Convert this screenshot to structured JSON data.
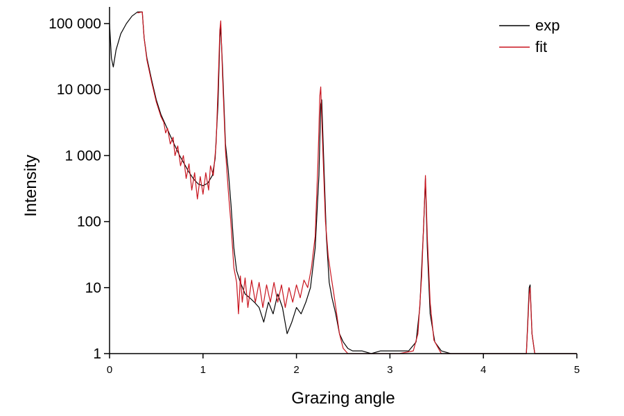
{
  "chart_data": {
    "type": "line",
    "title": "",
    "xlabel": "Grazing angle",
    "ylabel": "Intensity",
    "x_scale": "linear",
    "y_scale": "log",
    "xlim": [
      0,
      5
    ],
    "ylim": [
      1,
      180000
    ],
    "x_ticks": [
      0,
      1,
      2,
      3,
      4,
      5
    ],
    "x_tick_labels": [
      "0",
      "1",
      "2",
      "3",
      "4",
      "5"
    ],
    "y_ticks": [
      1,
      10,
      100,
      1000,
      10000,
      100000
    ],
    "y_tick_labels": [
      "1",
      "10",
      "100",
      "1 000",
      "10 000",
      "100 000"
    ],
    "grid": false,
    "legend_position": "top-right",
    "series": [
      {
        "name": "exp",
        "color": "#000000",
        "points": [
          [
            0.0,
            100000
          ],
          [
            0.02,
            30000
          ],
          [
            0.04,
            22000
          ],
          [
            0.07,
            40000
          ],
          [
            0.12,
            70000
          ],
          [
            0.18,
            100000
          ],
          [
            0.24,
            130000
          ],
          [
            0.3,
            150000
          ],
          [
            0.35,
            150000
          ],
          [
            0.37,
            60000
          ],
          [
            0.4,
            30000
          ],
          [
            0.45,
            14000
          ],
          [
            0.5,
            7000
          ],
          [
            0.55,
            4200
          ],
          [
            0.6,
            2900
          ],
          [
            0.65,
            2000
          ],
          [
            0.7,
            1400
          ],
          [
            0.75,
            1000
          ],
          [
            0.8,
            750
          ],
          [
            0.85,
            560
          ],
          [
            0.9,
            440
          ],
          [
            0.95,
            370
          ],
          [
            1.0,
            350
          ],
          [
            1.05,
            380
          ],
          [
            1.1,
            500
          ],
          [
            1.13,
            900
          ],
          [
            1.16,
            6000
          ],
          [
            1.18,
            60000
          ],
          [
            1.19,
            90000
          ],
          [
            1.21,
            20000
          ],
          [
            1.24,
            1500
          ],
          [
            1.27,
            600
          ],
          [
            1.3,
            180
          ],
          [
            1.33,
            40
          ],
          [
            1.36,
            18
          ],
          [
            1.4,
            12
          ],
          [
            1.45,
            8
          ],
          [
            1.5,
            7
          ],
          [
            1.55,
            6
          ],
          [
            1.6,
            5
          ],
          [
            1.65,
            3
          ],
          [
            1.7,
            6
          ],
          [
            1.75,
            4
          ],
          [
            1.8,
            8
          ],
          [
            1.85,
            5
          ],
          [
            1.9,
            2
          ],
          [
            1.95,
            3
          ],
          [
            2.0,
            5
          ],
          [
            2.05,
            4
          ],
          [
            2.1,
            6
          ],
          [
            2.15,
            10
          ],
          [
            2.2,
            40
          ],
          [
            2.24,
            500
          ],
          [
            2.26,
            6000
          ],
          [
            2.27,
            7000
          ],
          [
            2.29,
            1000
          ],
          [
            2.32,
            60
          ],
          [
            2.35,
            12
          ],
          [
            2.38,
            7
          ],
          [
            2.42,
            4
          ],
          [
            2.46,
            2
          ],
          [
            2.5,
            1.5
          ],
          [
            2.55,
            1.2
          ],
          [
            2.6,
            1.1
          ],
          [
            2.7,
            1.1
          ],
          [
            2.8,
            1
          ],
          [
            2.9,
            1.1
          ],
          [
            3.0,
            1.1
          ],
          [
            3.1,
            1.1
          ],
          [
            3.2,
            1.1
          ],
          [
            3.28,
            1.5
          ],
          [
            3.32,
            5
          ],
          [
            3.36,
            80
          ],
          [
            3.38,
            450
          ],
          [
            3.4,
            40
          ],
          [
            3.43,
            4
          ],
          [
            3.48,
            1.5
          ],
          [
            3.55,
            1.1
          ],
          [
            3.65,
            1
          ],
          [
            3.8,
            1
          ],
          [
            4.0,
            1
          ],
          [
            4.2,
            1
          ],
          [
            4.4,
            1
          ],
          [
            4.46,
            1
          ],
          [
            4.49,
            10
          ],
          [
            4.5,
            11
          ],
          [
            4.52,
            2
          ],
          [
            4.55,
            1
          ],
          [
            4.7,
            1
          ],
          [
            5.0,
            1
          ]
        ]
      },
      {
        "name": "fit",
        "color": "#c8141e",
        "points": [
          [
            0.3,
            145000
          ],
          [
            0.35,
            150000
          ],
          [
            0.37,
            60000
          ],
          [
            0.4,
            28000
          ],
          [
            0.45,
            13000
          ],
          [
            0.5,
            6500
          ],
          [
            0.55,
            3900
          ],
          [
            0.58,
            3200
          ],
          [
            0.6,
            2200
          ],
          [
            0.62,
            2600
          ],
          [
            0.65,
            1500
          ],
          [
            0.68,
            1900
          ],
          [
            0.7,
            1000
          ],
          [
            0.73,
            1400
          ],
          [
            0.76,
            700
          ],
          [
            0.79,
            1000
          ],
          [
            0.82,
            450
          ],
          [
            0.85,
            750
          ],
          [
            0.88,
            300
          ],
          [
            0.91,
            550
          ],
          [
            0.94,
            220
          ],
          [
            0.97,
            480
          ],
          [
            1.0,
            260
          ],
          [
            1.03,
            550
          ],
          [
            1.06,
            300
          ],
          [
            1.08,
            700
          ],
          [
            1.11,
            500
          ],
          [
            1.14,
            1500
          ],
          [
            1.16,
            10000
          ],
          [
            1.18,
            80000
          ],
          [
            1.19,
            110000
          ],
          [
            1.21,
            15000
          ],
          [
            1.24,
            1200
          ],
          [
            1.27,
            300
          ],
          [
            1.3,
            90
          ],
          [
            1.33,
            20
          ],
          [
            1.36,
            12
          ],
          [
            1.38,
            4
          ],
          [
            1.4,
            15
          ],
          [
            1.42,
            6
          ],
          [
            1.45,
            14
          ],
          [
            1.48,
            5
          ],
          [
            1.52,
            13
          ],
          [
            1.56,
            6
          ],
          [
            1.6,
            12
          ],
          [
            1.64,
            5
          ],
          [
            1.68,
            11
          ],
          [
            1.72,
            6
          ],
          [
            1.76,
            12
          ],
          [
            1.8,
            6
          ],
          [
            1.84,
            11
          ],
          [
            1.88,
            5
          ],
          [
            1.92,
            10
          ],
          [
            1.96,
            6
          ],
          [
            2.0,
            11
          ],
          [
            2.04,
            7
          ],
          [
            2.08,
            13
          ],
          [
            2.12,
            10
          ],
          [
            2.16,
            20
          ],
          [
            2.2,
            60
          ],
          [
            2.23,
            800
          ],
          [
            2.25,
            8000
          ],
          [
            2.26,
            11000
          ],
          [
            2.28,
            1500
          ],
          [
            2.31,
            100
          ],
          [
            2.34,
            30
          ],
          [
            2.37,
            15
          ],
          [
            2.4,
            8
          ],
          [
            2.43,
            4
          ],
          [
            2.46,
            2
          ],
          [
            2.5,
            1.2
          ],
          [
            2.55,
            1
          ],
          [
            2.7,
            1
          ],
          [
            2.9,
            1
          ],
          [
            3.1,
            1
          ],
          [
            3.25,
            1.1
          ],
          [
            3.3,
            2
          ],
          [
            3.34,
            15
          ],
          [
            3.37,
            200
          ],
          [
            3.38,
            500
          ],
          [
            3.4,
            60
          ],
          [
            3.43,
            6
          ],
          [
            3.47,
            1.6
          ],
          [
            3.55,
            1
          ],
          [
            3.8,
            1
          ],
          [
            4.2,
            1
          ],
          [
            4.46,
            1
          ],
          [
            4.49,
            8
          ],
          [
            4.5,
            10
          ],
          [
            4.52,
            2
          ],
          [
            4.55,
            1
          ],
          [
            4.7,
            1
          ],
          [
            5.0,
            1
          ]
        ]
      }
    ]
  }
}
